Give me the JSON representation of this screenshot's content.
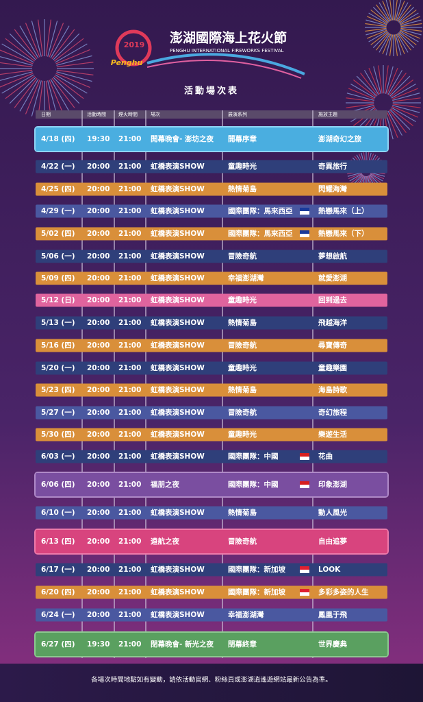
{
  "header": {
    "title": "澎湖國際海上花火節",
    "subtitle": "PENGHU INTERNATIONAL FIREWORKS FESTIVAL",
    "year": "2019",
    "logo": "Penghu",
    "heading": "活動場次表"
  },
  "table": {
    "columns": [
      "日期",
      "活動時間",
      "煙火時間",
      "場次",
      "展演系列",
      "施放主題"
    ],
    "rows": [
      [
        "4/18 (四)",
        "19:30",
        "21:00",
        "開幕晚會- 澎坊之夜",
        "開幕序章",
        "澎湖奇幻之旅"
      ],
      [
        "4/22 (一)",
        "20:00",
        "21:00",
        "虹橋表演SHOW",
        "童趣時光",
        "奇異旅行"
      ],
      [
        "4/25 (四)",
        "20:00",
        "21:00",
        "虹橋表演SHOW",
        "熱情菊島",
        "閃耀海灣"
      ],
      [
        "4/29 (一)",
        "20:00",
        "21:00",
        "虹橋表演SHOW",
        "國際團隊：馬來西亞",
        "熱戀馬來（上）"
      ],
      [
        "5/02 (四)",
        "20:00",
        "21:00",
        "虹橋表演SHOW",
        "國際團隊：馬來西亞",
        "熱戀馬來（下）"
      ],
      [
        "5/06 (一)",
        "20:00",
        "21:00",
        "虹橋表演SHOW",
        "冒險奇航",
        "夢想啟航"
      ],
      [
        "5/09 (四)",
        "20:00",
        "21:00",
        "虹橋表演SHOW",
        "幸福澎湖灣",
        "就愛澎湖"
      ],
      [
        "5/12 (日)",
        "20:00",
        "21:00",
        "虹橋表演SHOW",
        "童趣時光",
        "回到過去"
      ],
      [
        "5/13 (一)",
        "20:00",
        "21:00",
        "虹橋表演SHOW",
        "熱情菊島",
        "飛越海洋"
      ],
      [
        "5/16 (四)",
        "20:00",
        "21:00",
        "虹橋表演SHOW",
        "冒險奇航",
        "尋寶傳奇"
      ],
      [
        "5/20 (一)",
        "20:00",
        "21:00",
        "虹橋表演SHOW",
        "童趣時光",
        "童趣樂園"
      ],
      [
        "5/23 (四)",
        "20:00",
        "21:00",
        "虹橋表演SHOW",
        "熱情菊島",
        "海島詩歌"
      ],
      [
        "5/27 (一)",
        "20:00",
        "21:00",
        "虹橋表演SHOW",
        "冒險奇航",
        "奇幻旅程"
      ],
      [
        "5/30 (四)",
        "20:00",
        "21:00",
        "虹橋表演SHOW",
        "童趣時光",
        "樂遊生活"
      ],
      [
        "6/03 (一)",
        "20:00",
        "21:00",
        "虹橋表演SHOW",
        "國際團隊：中國",
        "花曲"
      ],
      [
        "6/06 (四)",
        "20:00",
        "21:00",
        "福朋之夜",
        "國際團隊：中國",
        "印象澎湖"
      ],
      [
        "6/10 (一)",
        "20:00",
        "21:00",
        "虹橋表演SHOW",
        "熱情菊島",
        "動人風光"
      ],
      [
        "6/13 (四)",
        "20:00",
        "21:00",
        "遠航之夜",
        "冒險奇航",
        "自由追夢"
      ],
      [
        "6/17 (一)",
        "20:00",
        "21:00",
        "虹橋表演SHOW",
        "國際團隊：新加坡",
        "LOOK"
      ],
      [
        "6/20 (四)",
        "20:00",
        "21:00",
        "虹橋表演SHOW",
        "國際團隊：新加坡",
        "多彩多姿的人生"
      ],
      [
        "6/24 (一)",
        "20:00",
        "21:00",
        "虹橋表演SHOW",
        "幸福澎湖灣",
        "鳳凰于飛"
      ],
      [
        "6/27 (四)",
        "19:30",
        "21:00",
        "閉幕晚會- 新光之夜",
        "閉幕終章",
        "世界慶典"
      ]
    ]
  },
  "footer": {
    "note": "各場次時間地點如有變動，請依活動官網、粉絲頁或澎湖逍遙遊網站最新公告為準。"
  }
}
